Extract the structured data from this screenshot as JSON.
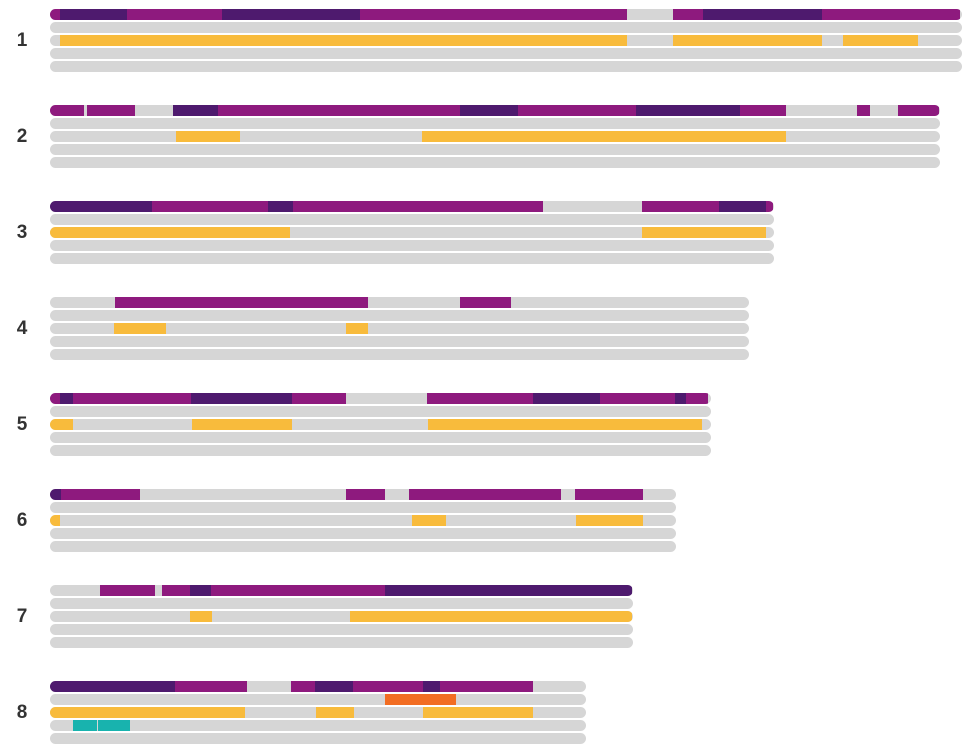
{
  "colors": {
    "track": "#d6d6d6",
    "magenta": "#8e1a7e",
    "purple": "#4e1a6e",
    "yellow": "#f8bb3c",
    "orange": "#f26d22",
    "teal": "#18b3ae"
  },
  "chart_data": {
    "type": "chromosome-segment-map",
    "chromosomes": [
      {
        "label": "1",
        "tracks": [
          [
            [
              "magenta",
              0,
              10
            ],
            [
              "purple",
              10,
              77
            ],
            [
              "magenta",
              77,
              172
            ],
            [
              "purple",
              172,
              310
            ],
            [
              "magenta",
              310,
              577
            ],
            [
              "magenta",
              623,
              653
            ],
            [
              "purple",
              653,
              772
            ],
            [
              "magenta",
              772,
              910
            ]
          ],
          [],
          [
            [
              "yellow",
              10,
              577
            ],
            [
              "yellow",
              623,
              772
            ],
            [
              "yellow",
              793,
              868
            ]
          ],
          [],
          []
        ]
      },
      {
        "label": "2",
        "tracks": [
          [
            [
              "magenta",
              0,
              34
            ],
            [
              "magenta",
              37,
              85
            ],
            [
              "purple",
              123,
              168
            ],
            [
              "magenta",
              168,
              410
            ],
            [
              "purple",
              410,
              468
            ],
            [
              "magenta",
              468,
              586
            ],
            [
              "purple",
              586,
              690
            ],
            [
              "magenta",
              690,
              736
            ],
            [
              "magenta",
              807,
              820
            ],
            [
              "magenta",
              848,
              889
            ]
          ],
          [],
          [
            [
              "yellow",
              126,
              190
            ],
            [
              "yellow",
              372,
              736
            ]
          ],
          [],
          []
        ]
      },
      {
        "label": "3",
        "tracks": [
          [
            [
              "purple",
              0,
              102
            ],
            [
              "magenta",
              102,
              218
            ],
            [
              "purple",
              218,
              243
            ],
            [
              "magenta",
              243,
              493
            ],
            [
              "magenta",
              592,
              669
            ],
            [
              "purple",
              669,
              716
            ],
            [
              "magenta",
              716,
              723
            ]
          ],
          [],
          [
            [
              "yellow",
              0,
              240
            ],
            [
              "yellow",
              592,
              716
            ]
          ],
          [],
          []
        ]
      },
      {
        "label": "4",
        "tracks": [
          [
            [
              "magenta",
              65,
              318
            ],
            [
              "magenta",
              410,
              461
            ]
          ],
          [],
          [
            [
              "yellow",
              64,
              116
            ],
            [
              "yellow",
              296,
              318
            ]
          ],
          [],
          []
        ]
      },
      {
        "label": "5",
        "tracks": [
          [
            [
              "magenta",
              0,
              10
            ],
            [
              "purple",
              10,
              23
            ],
            [
              "magenta",
              23,
              141
            ],
            [
              "purple",
              141,
              242
            ],
            [
              "magenta",
              242,
              296
            ],
            [
              "magenta",
              377,
              483
            ],
            [
              "purple",
              483,
              550
            ],
            [
              "magenta",
              550,
              625
            ],
            [
              "purple",
              625,
              636
            ],
            [
              "magenta",
              636,
              658
            ]
          ],
          [],
          [
            [
              "yellow",
              0,
              23
            ],
            [
              "yellow",
              142,
              242
            ],
            [
              "yellow",
              378,
              652
            ]
          ],
          [],
          []
        ]
      },
      {
        "label": "6",
        "tracks": [
          [
            [
              "purple",
              0,
              11
            ],
            [
              "magenta",
              11,
              90
            ],
            [
              "magenta",
              296,
              335
            ],
            [
              "magenta",
              359,
              511
            ],
            [
              "magenta",
              525,
              593
            ]
          ],
          [],
          [
            [
              "yellow",
              0,
              10
            ],
            [
              "yellow",
              362,
              396
            ],
            [
              "yellow",
              526,
              593
            ]
          ],
          [],
          []
        ]
      },
      {
        "label": "7",
        "tracks": [
          [
            [
              "magenta",
              50,
              105
            ],
            [
              "magenta",
              112,
              140
            ],
            [
              "purple",
              140,
              161
            ],
            [
              "magenta",
              161,
              335
            ],
            [
              "purple",
              335,
              582
            ]
          ],
          [],
          [
            [
              "yellow",
              140,
              162
            ],
            [
              "yellow",
              300,
              582
            ]
          ],
          [],
          []
        ]
      },
      {
        "label": "8",
        "tracks": [
          [
            [
              "purple",
              0,
              125
            ],
            [
              "magenta",
              125,
              197
            ],
            [
              "magenta",
              241,
              265
            ],
            [
              "purple",
              265,
              303
            ],
            [
              "magenta",
              303,
              373
            ],
            [
              "purple",
              373,
              390
            ],
            [
              "magenta",
              390,
              483
            ]
          ],
          [
            [
              "orange",
              335,
              406
            ]
          ],
          [
            [
              "yellow",
              0,
              195
            ],
            [
              "yellow",
              266,
              304
            ],
            [
              "yellow",
              373,
              483
            ]
          ],
          [
            [
              "teal",
              23,
              47
            ],
            [
              "teal",
              48,
              80
            ]
          ],
          []
        ]
      }
    ]
  }
}
